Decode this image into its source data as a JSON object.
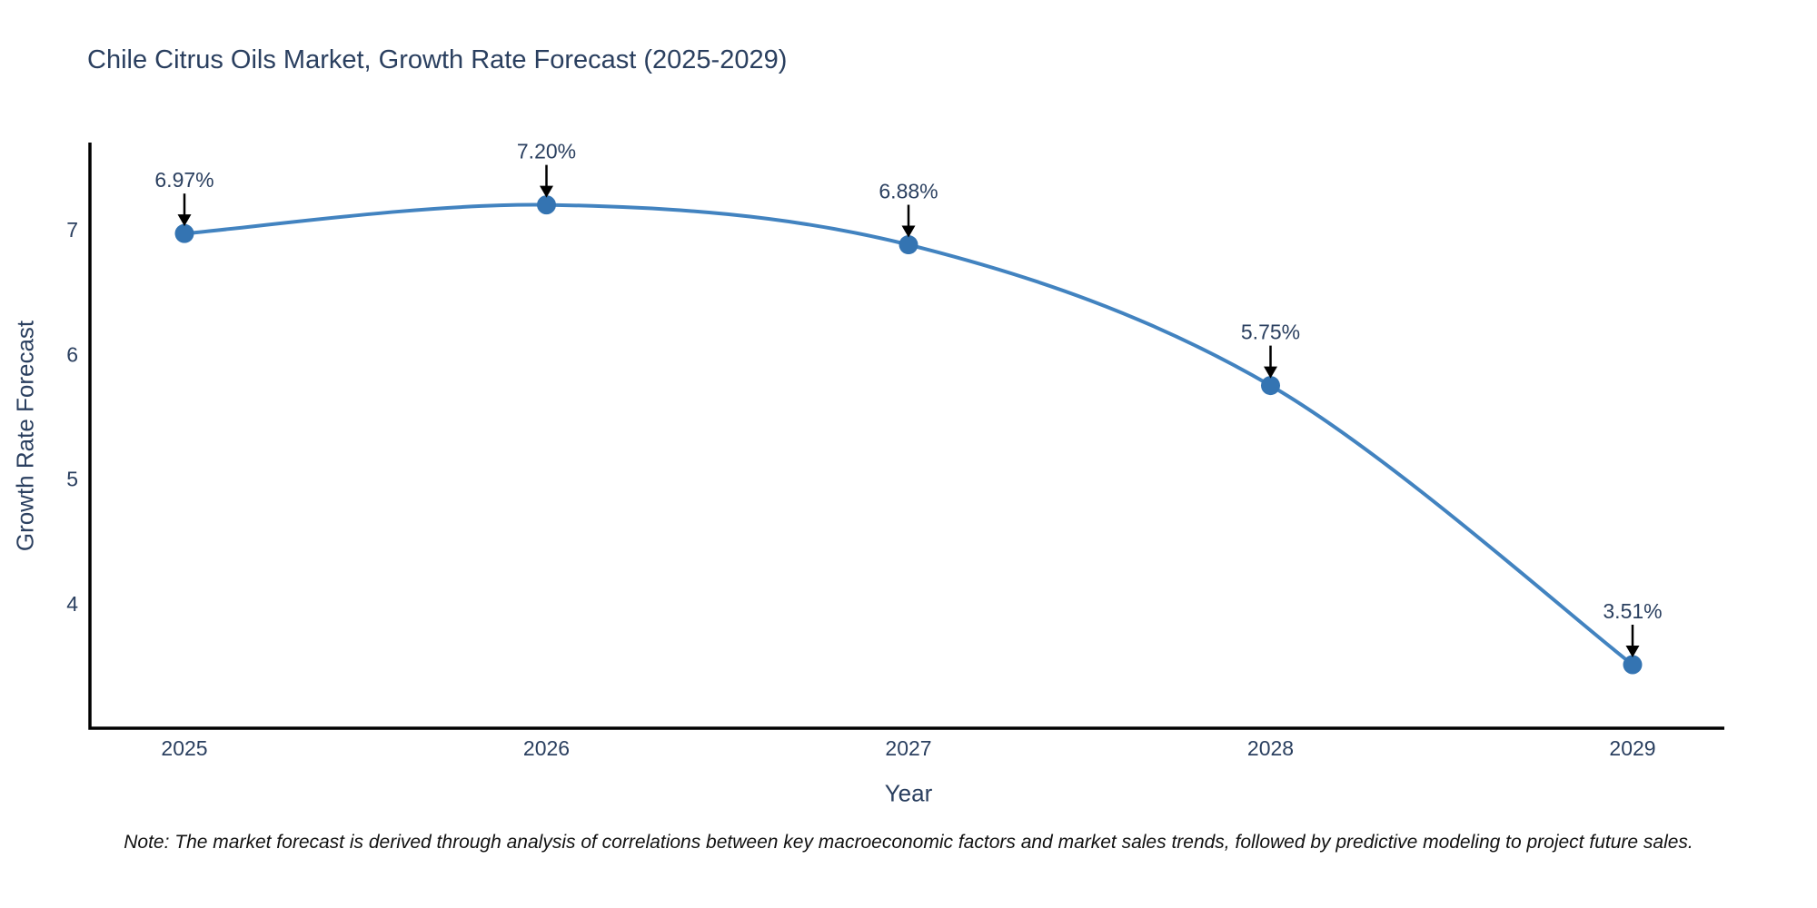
{
  "chart_data": {
    "type": "line",
    "title": "Chile Citrus Oils Market, Growth Rate Forecast (2025-2029)",
    "xlabel": "Year",
    "ylabel": "Growth Rate Forecast",
    "x": [
      2025,
      2026,
      2027,
      2028,
      2029
    ],
    "y": [
      6.97,
      7.2,
      6.88,
      5.75,
      3.51
    ],
    "point_labels": [
      "6.97%",
      "7.20%",
      "6.88%",
      "5.75%",
      "3.51%"
    ],
    "yticks": [
      4,
      5,
      6,
      7
    ],
    "ylim": [
      3.0,
      7.7
    ],
    "grid": false,
    "legend": "none",
    "line_color": "#4283c0",
    "marker_color": "#3474b2",
    "axis_color": "#000000",
    "text_color": "#2a3f5f",
    "annotation_arrow_color": "#000000"
  },
  "note": "Note: The market forecast is derived through analysis of correlations between key macroeconomic factors and market sales trends, followed by predictive modeling to project future sales."
}
